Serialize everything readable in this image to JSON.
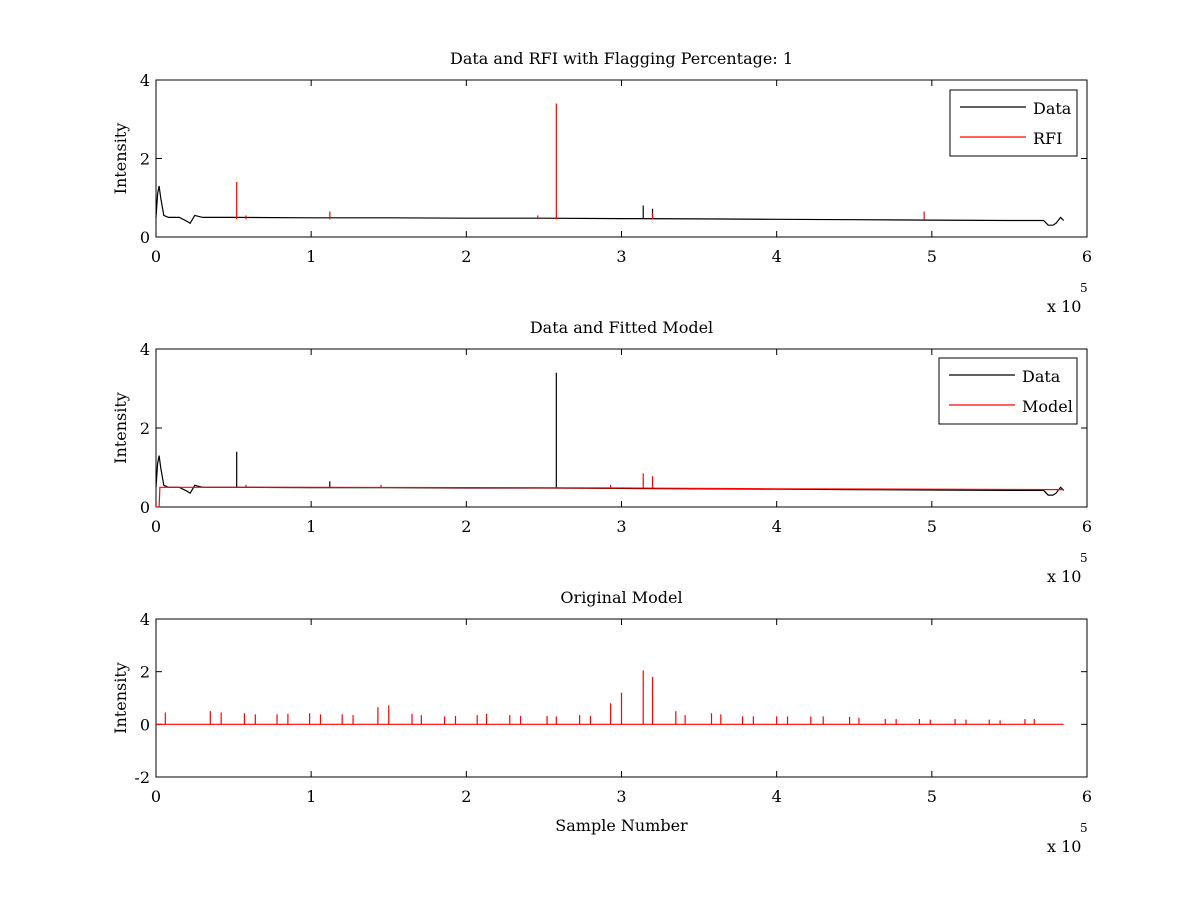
{
  "chart_data": [
    {
      "type": "line",
      "title": "Data and RFI with Flagging Percentage: 1",
      "xlabel": "",
      "ylabel": "Intensity",
      "xlim": [
        0,
        6
      ],
      "ylim": [
        0,
        4
      ],
      "x_ticks": [
        "0",
        "1",
        "2",
        "3",
        "4",
        "5",
        "6"
      ],
      "y_ticks": [
        "0",
        "2",
        "4"
      ],
      "x_exponent": {
        "base": "x 10",
        "power": "5"
      },
      "legend": {
        "position": "top-right",
        "entries": [
          "Data",
          "RFI"
        ]
      },
      "series": [
        {
          "name": "Data",
          "color": "#000000",
          "x": [
            0,
            0.01,
            0.02,
            0.03,
            0.05,
            0.08,
            0.15,
            0.2,
            0.22,
            0.25,
            0.3,
            0.5,
            1.0,
            1.5,
            2.0,
            2.5,
            3.0,
            3.5,
            4.0,
            4.5,
            5.0,
            5.5,
            5.72,
            5.75,
            5.78,
            5.8,
            5.83,
            5.85
          ],
          "y": [
            0.5,
            1.1,
            1.3,
            1.0,
            0.55,
            0.5,
            0.5,
            0.4,
            0.35,
            0.55,
            0.5,
            0.5,
            0.49,
            0.49,
            0.48,
            0.48,
            0.47,
            0.46,
            0.45,
            0.44,
            0.43,
            0.42,
            0.42,
            0.3,
            0.3,
            0.35,
            0.5,
            0.42
          ],
          "spikes": [
            {
              "x": 3.14,
              "y": 0.8
            },
            {
              "x": 3.2,
              "y": 0.72
            }
          ]
        },
        {
          "name": "RFI",
          "color": "#ff0000",
          "spikes": [
            {
              "x": 0.52,
              "y": 1.4
            },
            {
              "x": 0.58,
              "y": 0.55
            },
            {
              "x": 1.12,
              "y": 0.65
            },
            {
              "x": 2.46,
              "y": 0.55
            },
            {
              "x": 2.58,
              "y": 3.4
            },
            {
              "x": 3.2,
              "y": 0.6
            },
            {
              "x": 4.95,
              "y": 0.65
            }
          ]
        }
      ]
    },
    {
      "type": "line",
      "title": "Data and Fitted Model",
      "xlabel": "",
      "ylabel": "Intensity",
      "xlim": [
        0,
        6
      ],
      "ylim": [
        0,
        4
      ],
      "x_ticks": [
        "0",
        "1",
        "2",
        "3",
        "4",
        "5",
        "6"
      ],
      "y_ticks": [
        "0",
        "2",
        "4"
      ],
      "x_exponent": {
        "base": "x 10",
        "power": "5"
      },
      "legend": {
        "position": "top-right",
        "entries": [
          "Data",
          "Model"
        ]
      },
      "series": [
        {
          "name": "Data",
          "color": "#000000",
          "x": [
            0,
            0.01,
            0.02,
            0.03,
            0.05,
            0.08,
            0.15,
            0.2,
            0.22,
            0.25,
            0.3,
            0.5,
            1.0,
            1.5,
            2.0,
            2.5,
            3.0,
            3.5,
            4.0,
            4.5,
            5.0,
            5.5,
            5.72,
            5.75,
            5.78,
            5.8,
            5.83,
            5.85
          ],
          "y": [
            0.5,
            1.1,
            1.3,
            1.0,
            0.55,
            0.5,
            0.5,
            0.4,
            0.35,
            0.55,
            0.5,
            0.5,
            0.49,
            0.49,
            0.48,
            0.48,
            0.47,
            0.46,
            0.45,
            0.44,
            0.43,
            0.42,
            0.42,
            0.3,
            0.3,
            0.35,
            0.5,
            0.42
          ],
          "spikes": [
            {
              "x": 0.52,
              "y": 1.4
            },
            {
              "x": 1.12,
              "y": 0.65
            },
            {
              "x": 2.58,
              "y": 3.4
            }
          ]
        },
        {
          "name": "Model",
          "color": "#ff0000",
          "x": [
            0,
            0.02,
            0.025,
            0.04,
            1.0,
            2.0,
            3.0,
            4.0,
            5.0,
            5.85
          ],
          "y": [
            0,
            0,
            0.5,
            0.5,
            0.5,
            0.49,
            0.48,
            0.46,
            0.45,
            0.44
          ],
          "spikes": [
            {
              "x": 3.14,
              "y": 0.85
            },
            {
              "x": 3.2,
              "y": 0.78
            },
            {
              "x": 0.58,
              "y": 0.56
            },
            {
              "x": 1.45,
              "y": 0.56
            },
            {
              "x": 2.93,
              "y": 0.56
            }
          ]
        }
      ]
    },
    {
      "type": "line",
      "title": "Original Model",
      "xlabel": "Sample Number",
      "ylabel": "Intensity",
      "xlim": [
        0,
        6
      ],
      "ylim": [
        -2,
        4
      ],
      "x_ticks": [
        "0",
        "1",
        "2",
        "3",
        "4",
        "5",
        "6"
      ],
      "y_ticks": [
        "-2",
        "0",
        "2",
        "4"
      ],
      "x_exponent": {
        "base": "x 10",
        "power": "5"
      },
      "legend": null,
      "series": [
        {
          "color": "#ff0000",
          "baseline": {
            "x": [
              0,
              5.85
            ],
            "y": [
              0,
              0
            ]
          },
          "spikes": [
            {
              "x": 0.06,
              "y": 0.45
            },
            {
              "x": 0.35,
              "y": 0.5
            },
            {
              "x": 0.42,
              "y": 0.45
            },
            {
              "x": 0.57,
              "y": 0.42
            },
            {
              "x": 0.64,
              "y": 0.38
            },
            {
              "x": 0.78,
              "y": 0.38
            },
            {
              "x": 0.85,
              "y": 0.4
            },
            {
              "x": 0.99,
              "y": 0.42
            },
            {
              "x": 1.06,
              "y": 0.38
            },
            {
              "x": 1.2,
              "y": 0.38
            },
            {
              "x": 1.27,
              "y": 0.35
            },
            {
              "x": 1.43,
              "y": 0.65
            },
            {
              "x": 1.5,
              "y": 0.72
            },
            {
              "x": 1.65,
              "y": 0.4
            },
            {
              "x": 1.71,
              "y": 0.35
            },
            {
              "x": 1.86,
              "y": 0.3
            },
            {
              "x": 1.93,
              "y": 0.32
            },
            {
              "x": 2.07,
              "y": 0.35
            },
            {
              "x": 2.13,
              "y": 0.4
            },
            {
              "x": 2.28,
              "y": 0.35
            },
            {
              "x": 2.35,
              "y": 0.32
            },
            {
              "x": 2.52,
              "y": 0.32
            },
            {
              "x": 2.58,
              "y": 0.3
            },
            {
              "x": 2.73,
              "y": 0.35
            },
            {
              "x": 2.8,
              "y": 0.32
            },
            {
              "x": 2.93,
              "y": 0.8
            },
            {
              "x": 3.0,
              "y": 1.2
            },
            {
              "x": 3.14,
              "y": 2.05
            },
            {
              "x": 3.2,
              "y": 1.8
            },
            {
              "x": 3.35,
              "y": 0.5
            },
            {
              "x": 3.41,
              "y": 0.35
            },
            {
              "x": 3.58,
              "y": 0.42
            },
            {
              "x": 3.64,
              "y": 0.38
            },
            {
              "x": 3.78,
              "y": 0.3
            },
            {
              "x": 3.85,
              "y": 0.3
            },
            {
              "x": 4.0,
              "y": 0.3
            },
            {
              "x": 4.07,
              "y": 0.3
            },
            {
              "x": 4.22,
              "y": 0.3
            },
            {
              "x": 4.3,
              "y": 0.3
            },
            {
              "x": 4.47,
              "y": 0.28
            },
            {
              "x": 4.53,
              "y": 0.25
            },
            {
              "x": 4.7,
              "y": 0.2
            },
            {
              "x": 4.77,
              "y": 0.2
            },
            {
              "x": 4.92,
              "y": 0.2
            },
            {
              "x": 4.99,
              "y": 0.18
            },
            {
              "x": 5.15,
              "y": 0.2
            },
            {
              "x": 5.22,
              "y": 0.18
            },
            {
              "x": 5.37,
              "y": 0.18
            },
            {
              "x": 5.44,
              "y": 0.15
            },
            {
              "x": 5.6,
              "y": 0.2
            },
            {
              "x": 5.66,
              "y": 0.2
            }
          ]
        }
      ]
    }
  ]
}
